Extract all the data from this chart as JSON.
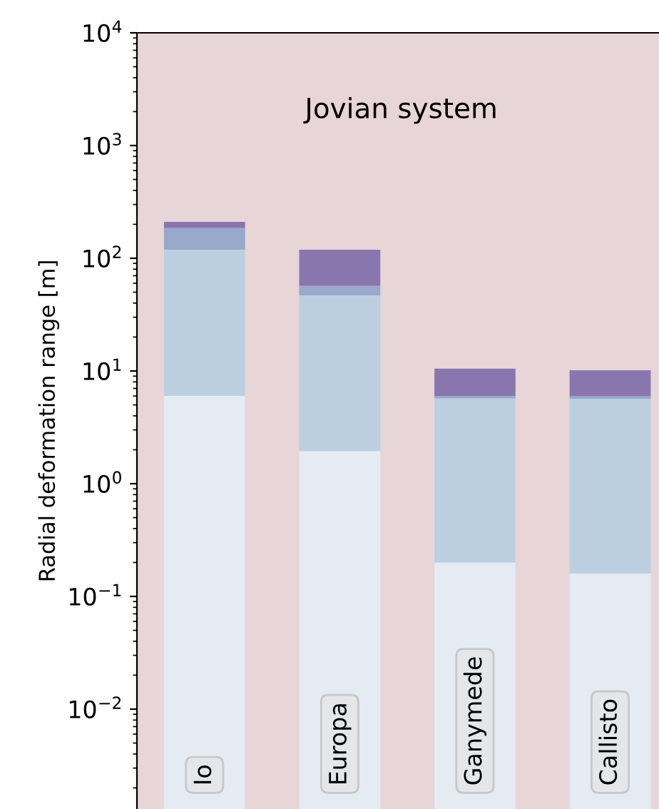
{
  "chart_data": {
    "type": "bar",
    "title": "Jovian system",
    "ylabel": "Radial deformation range [m]",
    "categories": [
      "Io",
      "Europa",
      "Ganymede",
      "Callisto"
    ],
    "stacked": true,
    "log": "y",
    "tick_labels": "y",
    "grid": false,
    "legend": false,
    "series": [
      {
        "color": "#e4ebf3",
        "values": [
          6.0,
          1.95,
          0.2,
          0.16
        ]
      },
      {
        "color": "#bccfe1",
        "values": [
          113,
          45,
          5.5,
          5.5
        ]
      },
      {
        "color": "#98a9cc",
        "values": [
          66,
          10,
          0.3,
          0.3
        ]
      },
      {
        "color": "#8a76ae",
        "values": [
          25,
          62,
          4.5,
          4.2
        ]
      }
    ],
    "ylim": [
      0.0013,
      10000
    ],
    "yticks": [
      {
        "value": 0.01,
        "label": "10$^{−2}$"
      },
      {
        "value": 0.1,
        "label": "10$^{−1}$"
      },
      {
        "value": 1,
        "label": "10$^{0}$"
      },
      {
        "value": 10,
        "label": "10$^{1}$"
      },
      {
        "value": 100,
        "label": "10$^{2}$"
      },
      {
        "value": 1000,
        "label": "10$^{3}$"
      },
      {
        "value": 10000,
        "label": "10$^{4}$"
      }
    ]
  }
}
